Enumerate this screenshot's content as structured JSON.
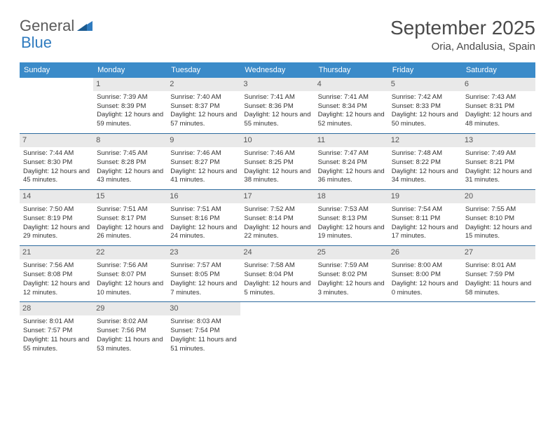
{
  "logo": {
    "word1": "General",
    "word2": "Blue"
  },
  "title": "September 2025",
  "location": "Oria, Andalusia, Spain",
  "colors": {
    "header_bg": "#3b8bc9",
    "header_text": "#ffffff",
    "daynum_bg": "#e9e9e9",
    "daynum_text": "#555555",
    "row_border": "#2c6a9e",
    "title_color": "#4a4a4a",
    "logo_gray": "#5a5a5a",
    "logo_blue": "#2f7bbf"
  },
  "day_headers": [
    "Sunday",
    "Monday",
    "Tuesday",
    "Wednesday",
    "Thursday",
    "Friday",
    "Saturday"
  ],
  "weeks": [
    [
      {
        "empty": true
      },
      {
        "n": "1",
        "sunrise": "Sunrise: 7:39 AM",
        "sunset": "Sunset: 8:39 PM",
        "daylight": "Daylight: 12 hours and 59 minutes."
      },
      {
        "n": "2",
        "sunrise": "Sunrise: 7:40 AM",
        "sunset": "Sunset: 8:37 PM",
        "daylight": "Daylight: 12 hours and 57 minutes."
      },
      {
        "n": "3",
        "sunrise": "Sunrise: 7:41 AM",
        "sunset": "Sunset: 8:36 PM",
        "daylight": "Daylight: 12 hours and 55 minutes."
      },
      {
        "n": "4",
        "sunrise": "Sunrise: 7:41 AM",
        "sunset": "Sunset: 8:34 PM",
        "daylight": "Daylight: 12 hours and 52 minutes."
      },
      {
        "n": "5",
        "sunrise": "Sunrise: 7:42 AM",
        "sunset": "Sunset: 8:33 PM",
        "daylight": "Daylight: 12 hours and 50 minutes."
      },
      {
        "n": "6",
        "sunrise": "Sunrise: 7:43 AM",
        "sunset": "Sunset: 8:31 PM",
        "daylight": "Daylight: 12 hours and 48 minutes."
      }
    ],
    [
      {
        "n": "7",
        "sunrise": "Sunrise: 7:44 AM",
        "sunset": "Sunset: 8:30 PM",
        "daylight": "Daylight: 12 hours and 45 minutes."
      },
      {
        "n": "8",
        "sunrise": "Sunrise: 7:45 AM",
        "sunset": "Sunset: 8:28 PM",
        "daylight": "Daylight: 12 hours and 43 minutes."
      },
      {
        "n": "9",
        "sunrise": "Sunrise: 7:46 AM",
        "sunset": "Sunset: 8:27 PM",
        "daylight": "Daylight: 12 hours and 41 minutes."
      },
      {
        "n": "10",
        "sunrise": "Sunrise: 7:46 AM",
        "sunset": "Sunset: 8:25 PM",
        "daylight": "Daylight: 12 hours and 38 minutes."
      },
      {
        "n": "11",
        "sunrise": "Sunrise: 7:47 AM",
        "sunset": "Sunset: 8:24 PM",
        "daylight": "Daylight: 12 hours and 36 minutes."
      },
      {
        "n": "12",
        "sunrise": "Sunrise: 7:48 AM",
        "sunset": "Sunset: 8:22 PM",
        "daylight": "Daylight: 12 hours and 34 minutes."
      },
      {
        "n": "13",
        "sunrise": "Sunrise: 7:49 AM",
        "sunset": "Sunset: 8:21 PM",
        "daylight": "Daylight: 12 hours and 31 minutes."
      }
    ],
    [
      {
        "n": "14",
        "sunrise": "Sunrise: 7:50 AM",
        "sunset": "Sunset: 8:19 PM",
        "daylight": "Daylight: 12 hours and 29 minutes."
      },
      {
        "n": "15",
        "sunrise": "Sunrise: 7:51 AM",
        "sunset": "Sunset: 8:17 PM",
        "daylight": "Daylight: 12 hours and 26 minutes."
      },
      {
        "n": "16",
        "sunrise": "Sunrise: 7:51 AM",
        "sunset": "Sunset: 8:16 PM",
        "daylight": "Daylight: 12 hours and 24 minutes."
      },
      {
        "n": "17",
        "sunrise": "Sunrise: 7:52 AM",
        "sunset": "Sunset: 8:14 PM",
        "daylight": "Daylight: 12 hours and 22 minutes."
      },
      {
        "n": "18",
        "sunrise": "Sunrise: 7:53 AM",
        "sunset": "Sunset: 8:13 PM",
        "daylight": "Daylight: 12 hours and 19 minutes."
      },
      {
        "n": "19",
        "sunrise": "Sunrise: 7:54 AM",
        "sunset": "Sunset: 8:11 PM",
        "daylight": "Daylight: 12 hours and 17 minutes."
      },
      {
        "n": "20",
        "sunrise": "Sunrise: 7:55 AM",
        "sunset": "Sunset: 8:10 PM",
        "daylight": "Daylight: 12 hours and 15 minutes."
      }
    ],
    [
      {
        "n": "21",
        "sunrise": "Sunrise: 7:56 AM",
        "sunset": "Sunset: 8:08 PM",
        "daylight": "Daylight: 12 hours and 12 minutes."
      },
      {
        "n": "22",
        "sunrise": "Sunrise: 7:56 AM",
        "sunset": "Sunset: 8:07 PM",
        "daylight": "Daylight: 12 hours and 10 minutes."
      },
      {
        "n": "23",
        "sunrise": "Sunrise: 7:57 AM",
        "sunset": "Sunset: 8:05 PM",
        "daylight": "Daylight: 12 hours and 7 minutes."
      },
      {
        "n": "24",
        "sunrise": "Sunrise: 7:58 AM",
        "sunset": "Sunset: 8:04 PM",
        "daylight": "Daylight: 12 hours and 5 minutes."
      },
      {
        "n": "25",
        "sunrise": "Sunrise: 7:59 AM",
        "sunset": "Sunset: 8:02 PM",
        "daylight": "Daylight: 12 hours and 3 minutes."
      },
      {
        "n": "26",
        "sunrise": "Sunrise: 8:00 AM",
        "sunset": "Sunset: 8:00 PM",
        "daylight": "Daylight: 12 hours and 0 minutes."
      },
      {
        "n": "27",
        "sunrise": "Sunrise: 8:01 AM",
        "sunset": "Sunset: 7:59 PM",
        "daylight": "Daylight: 11 hours and 58 minutes."
      }
    ],
    [
      {
        "n": "28",
        "sunrise": "Sunrise: 8:01 AM",
        "sunset": "Sunset: 7:57 PM",
        "daylight": "Daylight: 11 hours and 55 minutes."
      },
      {
        "n": "29",
        "sunrise": "Sunrise: 8:02 AM",
        "sunset": "Sunset: 7:56 PM",
        "daylight": "Daylight: 11 hours and 53 minutes."
      },
      {
        "n": "30",
        "sunrise": "Sunrise: 8:03 AM",
        "sunset": "Sunset: 7:54 PM",
        "daylight": "Daylight: 11 hours and 51 minutes."
      },
      {
        "empty": true
      },
      {
        "empty": true
      },
      {
        "empty": true
      },
      {
        "empty": true
      }
    ]
  ]
}
